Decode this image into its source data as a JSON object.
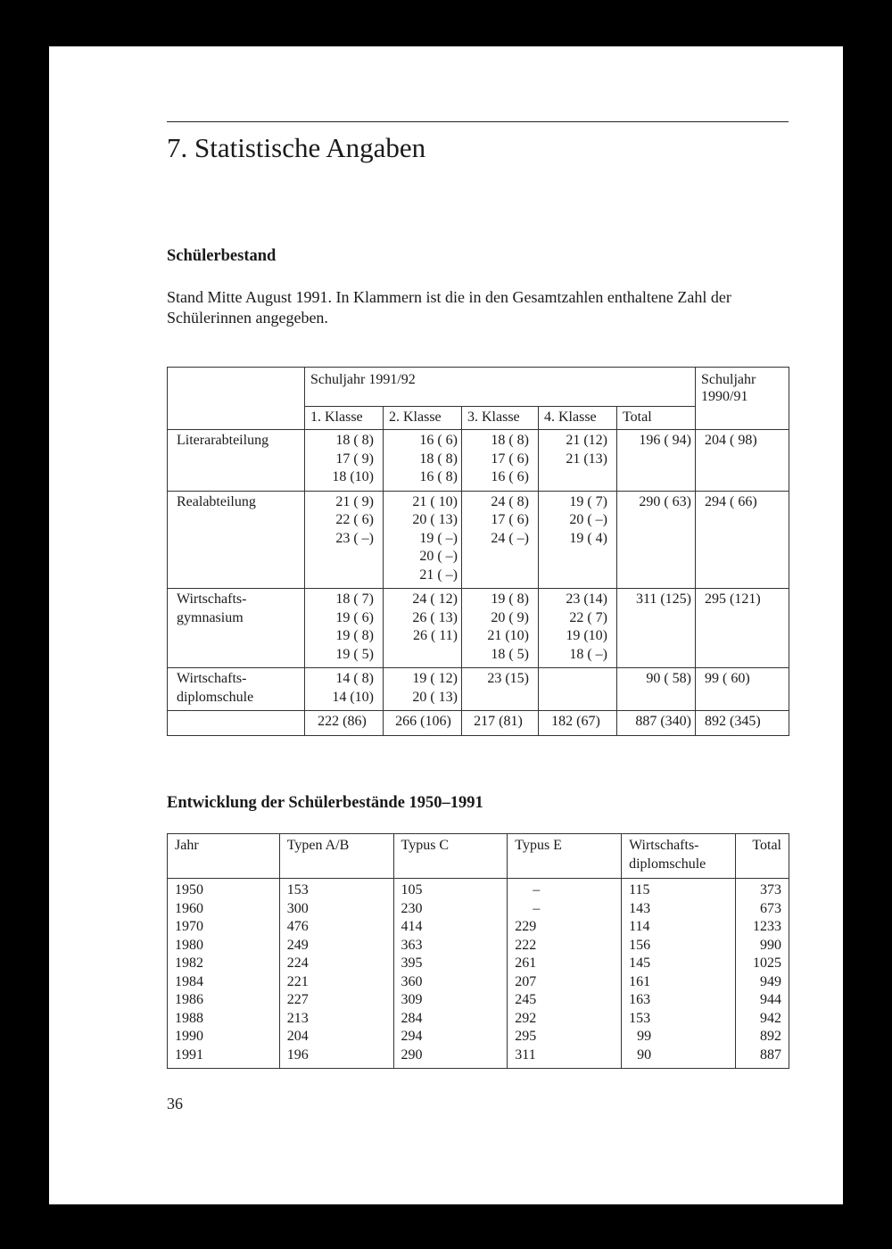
{
  "section_title": "7. Statistische Angaben",
  "schuelerbestand": {
    "heading": "Schülerbestand",
    "intro": "Stand Mitte August 1991. In Klammern ist die in den Gesamtzahlen enthaltene Zahl der Schülerinnen angegeben.",
    "header_year_current": "Schuljahr 1991/92",
    "header_year_previous": "Schuljahr\n1990/91",
    "columns": [
      "1. Klasse",
      "2. Klasse",
      "3. Klasse",
      "4. Klasse",
      "Total"
    ],
    "rows": [
      {
        "label": "Literarabteilung",
        "cells": [
          "18 ( 8)\n17 ( 9)\n18 (10)",
          "16 (   6)\n18 (   8)\n16 (   8)",
          "18 ( 8)\n17 ( 6)\n16 ( 6)",
          "21 (12)\n21 (13)",
          "196 ( 94)",
          "204 ( 98)"
        ]
      },
      {
        "label": "Realabteilung",
        "cells": [
          "21 ( 9)\n22 ( 6)\n23 ( –)",
          "21 ( 10)\n20 ( 13)\n19 (   –)\n20 (   –)\n21 (   –)",
          "24 ( 8)\n17 ( 6)\n24 ( –)",
          "19 ( 7)\n20 ( –)\n19 ( 4)",
          "290 ( 63)",
          "294 ( 66)"
        ]
      },
      {
        "label": "Wirtschafts-\ngymnasium",
        "cells": [
          "18 ( 7)\n19 ( 6)\n19 ( 8)\n19 ( 5)",
          "24 ( 12)\n26 ( 13)\n26 ( 11)",
          "19 ( 8)\n20 ( 9)\n21 (10)\n18 ( 5)",
          "23 (14)\n22 ( 7)\n19 (10)\n18 ( –)",
          "311 (125)",
          "295 (121)"
        ]
      },
      {
        "label": "Wirtschafts-\ndiplomschule",
        "cells": [
          "14 ( 8)\n14 (10)",
          "19 ( 12)\n20 ( 13)",
          "23 (15)",
          "",
          "90 ( 58)",
          "99 ( 60)"
        ]
      },
      {
        "label": "",
        "cells": [
          "222 (86)",
          "266 (106)",
          "217 (81)",
          "182 (67)",
          "887 (340)",
          "892 (345)"
        ]
      }
    ]
  },
  "entwicklung": {
    "heading": "Entwicklung der Schülerbestände 1950–1991",
    "columns": [
      "Jahr",
      "Typen A/B",
      "Typus C",
      "Typus E",
      "Wirtschafts-\ndiplomschule",
      "Total"
    ],
    "rows": [
      [
        "1950",
        "153",
        "105",
        "–",
        "115",
        "373"
      ],
      [
        "1960",
        "300",
        "230",
        "–",
        "143",
        "673"
      ],
      [
        "1970",
        "476",
        "414",
        "229",
        "114",
        "1233"
      ],
      [
        "1980",
        "249",
        "363",
        "222",
        "156",
        "990"
      ],
      [
        "1982",
        "224",
        "395",
        "261",
        "145",
        "1025"
      ],
      [
        "1984",
        "221",
        "360",
        "207",
        "161",
        "949"
      ],
      [
        "1986",
        "227",
        "309",
        "245",
        "163",
        "944"
      ],
      [
        "1988",
        "213",
        "284",
        "292",
        "153",
        "942"
      ],
      [
        "1990",
        "204",
        "294",
        "295",
        "99",
        "892"
      ],
      [
        "1991",
        "196",
        "290",
        "311",
        "90",
        "887"
      ]
    ]
  },
  "page_number": "36"
}
